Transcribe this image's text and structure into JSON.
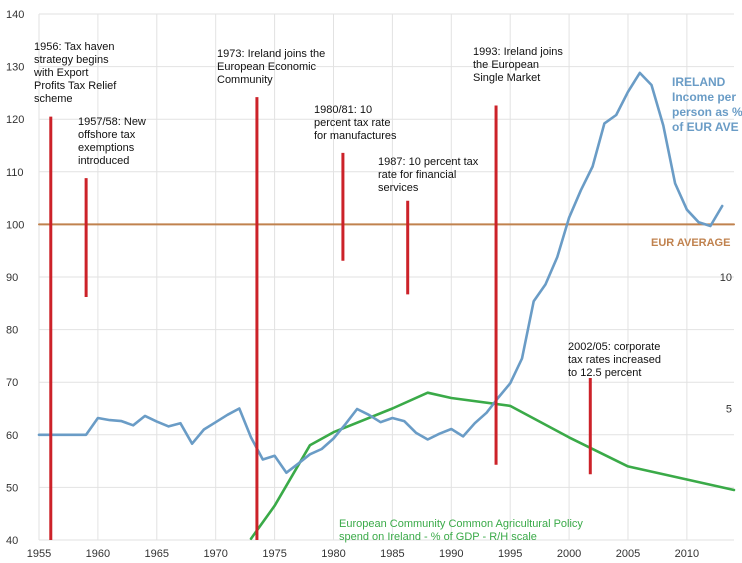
{
  "chart_data": {
    "type": "line",
    "x_range": [
      1955,
      2014
    ],
    "ylim": [
      40,
      140
    ],
    "y2lim": [
      0,
      20
    ],
    "grid": true,
    "x_ticks": [
      "1955",
      "1960",
      "1965",
      "1970",
      "1975",
      "1980",
      "1985",
      "1990",
      "1995",
      "2000",
      "2005",
      "2010"
    ],
    "y_ticks": [
      "40",
      "50",
      "60",
      "70",
      "80",
      "90",
      "100",
      "110",
      "120",
      "130",
      "140"
    ],
    "y2_ticks": [
      "5",
      "10"
    ],
    "colors": {
      "ireland": "#6a9cc6",
      "eur": "#c0824e",
      "cap": "#3aaa48",
      "marker": "#cc2229",
      "grid": "#e2e2e2"
    },
    "series": [
      {
        "name": "IRELAND\nIncome per\nperson as %\nof EUR AVE",
        "color": "#6a9cc6",
        "axis": "left",
        "x": [
          1955,
          1956,
          1957,
          1958,
          1959,
          1960,
          1961,
          1962,
          1963,
          1964,
          1965,
          1966,
          1967,
          1968,
          1969,
          1970,
          1971,
          1972,
          1973,
          1974,
          1975,
          1976,
          1977,
          1978,
          1979,
          1980,
          1981,
          1982,
          1983,
          1984,
          1985,
          1986,
          1987,
          1988,
          1989,
          1990,
          1991,
          1992,
          1993,
          1994,
          1995,
          1996,
          1997,
          1998,
          1999,
          2000,
          2001,
          2002,
          2003,
          2004,
          2005,
          2006,
          2007,
          2008,
          2009,
          2010,
          2011,
          2012,
          2013
        ],
        "y": [
          60,
          60,
          60,
          60,
          60,
          63.2,
          62.8,
          62.6,
          61.8,
          63.6,
          62.5,
          61.6,
          62.2,
          58.3,
          61,
          62.4,
          63.8,
          65,
          59.5,
          55.3,
          56,
          52.8,
          54.5,
          56.3,
          57.3,
          59.3,
          62,
          64.9,
          63.8,
          62.4,
          63.2,
          62.6,
          60.4,
          59.1,
          60.2,
          61.1,
          59.7,
          62.2,
          64.2,
          67.1,
          69.8,
          74.5,
          85.4,
          88.6,
          93.8,
          101.3,
          106.5,
          111,
          119.2,
          120.8,
          125.2,
          128.8,
          126.5,
          118.8,
          107.8,
          102.8,
          100.4,
          99.7,
          103.5
        ]
      },
      {
        "name": "EUR AVERAGE",
        "color": "#c0824e",
        "axis": "left",
        "x": [
          1955,
          2014
        ],
        "y": [
          100,
          100
        ]
      },
      {
        "name": "European Community Common Agricultural Policy\nspend on Ireland - % of GDP - R/H scale",
        "color": "#3aaa48",
        "axis": "right",
        "x": [
          1973,
          1975,
          1978,
          1980,
          1985,
          1988,
          1990,
          1995,
          2000,
          2005,
          2010,
          2014
        ],
        "y": [
          0.05,
          1.3,
          3.6,
          4.1,
          5,
          5.6,
          5.4,
          5.1,
          3.9,
          2.8,
          2.3,
          1.9
        ]
      }
    ],
    "annotations": [
      {
        "year": 1956,
        "y_top": 120.5,
        "y_bottom": 40,
        "text": "1956: Tax haven\nstrategy begins\nwith Export\nProfits Tax Relief\nscheme"
      },
      {
        "year": 1959,
        "y_top": 108.8,
        "y_bottom": 86.2,
        "text": "1957/58: New\noffshore tax\nexemptions\nintroduced"
      },
      {
        "year": 1973.5,
        "y_top": 124.2,
        "y_bottom": 40,
        "text": "1973: Ireland joins the\nEuropean Economic\nCommunity"
      },
      {
        "year": 1980.8,
        "y_top": 113.6,
        "y_bottom": 93.1,
        "text": "1980/81: 10\npercent tax rate\nfor manufactures"
      },
      {
        "year": 1986.3,
        "y_top": 104.5,
        "y_bottom": 86.7,
        "text": "1987: 10 percent tax\nrate for financial\nservices"
      },
      {
        "year": 1993.8,
        "y_top": 122.6,
        "y_bottom": 54.3,
        "text": "1993: Ireland joins\nthe European\nSingle Market"
      },
      {
        "year": 2001.8,
        "y_top": 70.8,
        "y_bottom": 52.5,
        "text": "2002/05: corporate\ntax rates increased\nto 12.5 percent"
      }
    ]
  }
}
